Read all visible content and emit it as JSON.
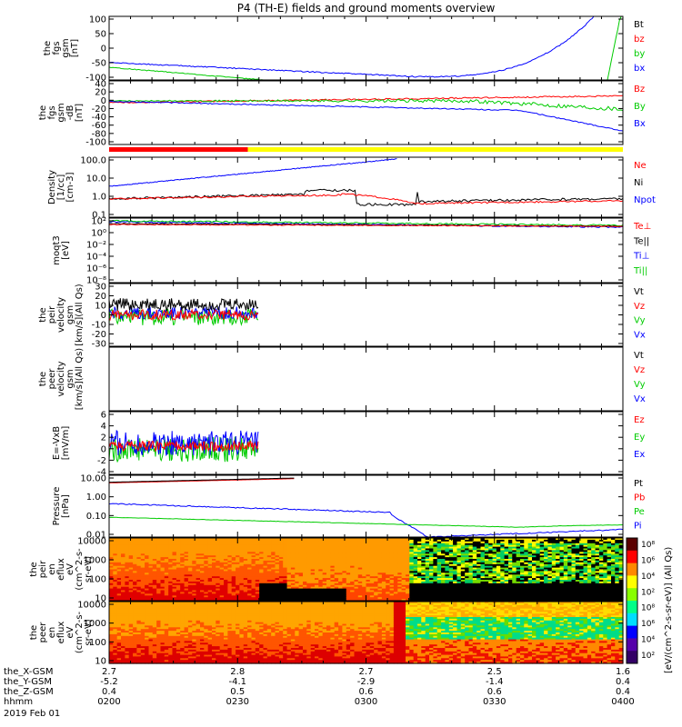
{
  "title": "P4 (TH-E) fields and ground moments overview",
  "colors": {
    "black": "#000000",
    "red": "#ff0000",
    "green": "#00cc00",
    "blue": "#0000ff",
    "yellow": "#ffff00"
  },
  "chart_data": [
    {
      "type": "line",
      "panel": "fgs",
      "ylabel_lines": [
        "the",
        "fgs",
        "gsm",
        "[nT]"
      ],
      "yticks": [
        "100",
        "50",
        "0",
        "-50",
        "-100"
      ],
      "ylim": [
        -100,
        100
      ],
      "legend": [
        "Bt",
        "bz",
        "by",
        "bx"
      ],
      "legend_colors": [
        "black",
        "red",
        "green",
        "blue"
      ],
      "series": [
        {
          "name": "bx",
          "color": "blue",
          "values": "(drawn)"
        },
        {
          "name": "by",
          "color": "green"
        }
      ]
    },
    {
      "type": "line",
      "panel": "fgs_dsl",
      "ylabel_lines": [
        "the",
        "fgs",
        "gsm",
        "-dB",
        "[nT]"
      ],
      "yticks": [
        "40",
        "20",
        "0",
        "-20",
        "-40",
        "-60",
        "-80",
        "-100"
      ],
      "ylim": [
        -100,
        40
      ],
      "legend": [
        "Bz",
        "By",
        "Bx"
      ],
      "legend_colors": [
        "red",
        "green",
        "blue"
      ]
    },
    {
      "type": "line",
      "panel": "density",
      "ylabel_lines": [
        "Density",
        "[1/cc]",
        "[cm-3]"
      ],
      "yticks": [
        "100.0",
        "10.0",
        "1.0",
        "0.1"
      ],
      "log": true,
      "legend": [
        "Ne",
        "Ni",
        "Npot"
      ],
      "legend_colors": [
        "red",
        "black",
        "blue"
      ]
    },
    {
      "type": "line",
      "panel": "temperature",
      "ylabel_lines": [
        "moqt3",
        "[eV]"
      ],
      "yticks": [
        "10²",
        "10⁰",
        "10⁻²",
        "10⁻⁴",
        "10⁻⁶",
        "10⁻⁸"
      ],
      "legend": [
        "Te⊥",
        "Te||",
        "Ti⊥",
        "Ti||"
      ],
      "legend_colors": [
        "red",
        "black",
        "blue",
        "green"
      ]
    },
    {
      "type": "line",
      "panel": "peir_velocity",
      "ylabel_lines": [
        "the",
        "peir",
        "velocity",
        "gsm",
        "[km/s](All Qs)"
      ],
      "yticks": [
        "30",
        "20",
        "10",
        "0",
        "-10",
        "-20",
        "-30"
      ],
      "ylim": [
        -30,
        30
      ],
      "legend": [
        "Vt",
        "Vz",
        "Vy",
        "Vx"
      ],
      "legend_colors": [
        "black",
        "red",
        "green",
        "blue"
      ]
    },
    {
      "type": "line",
      "panel": "peer_velocity",
      "ylabel_lines": [
        "the",
        "peer",
        "velocity",
        "gsm",
        "[km/s](All Qs)"
      ],
      "yticks": [],
      "legend": [
        "Vt",
        "Vz",
        "Vy",
        "Vx"
      ],
      "legend_colors": [
        "black",
        "red",
        "green",
        "blue"
      ]
    },
    {
      "type": "line",
      "panel": "efield",
      "ylabel_lines": [
        "E=-VxB",
        "[mV/m]"
      ],
      "yticks": [
        "6",
        "4",
        "2",
        "0",
        "-2",
        "-4"
      ],
      "ylim": [
        -4,
        6
      ],
      "legend": [
        "Ez",
        "Ey",
        "Ex"
      ],
      "legend_colors": [
        "red",
        "green",
        "blue"
      ]
    },
    {
      "type": "line",
      "panel": "pressure",
      "ylabel_lines": [
        "Pressure",
        "[nPa]"
      ],
      "yticks": [
        "10.00",
        "1.00",
        "0.10",
        "0.01"
      ],
      "log": true,
      "legend": [
        "Pt",
        "Pb",
        "Pe",
        "Pi"
      ],
      "legend_colors": [
        "black",
        "red",
        "green",
        "blue"
      ]
    },
    {
      "type": "heatmap",
      "panel": "peir_eflux",
      "ylabel_lines": [
        "the",
        "peir",
        "en",
        "eflux",
        "eV",
        "(cm^2-s-",
        "sr-eV)"
      ],
      "yticks": [
        "10000",
        "1000",
        "100",
        "10"
      ]
    },
    {
      "type": "heatmap",
      "panel": "peer_eflux",
      "ylabel_lines": [
        "the",
        "peer",
        "en",
        "eflux",
        "eV",
        "(cm^2-s-",
        "sr-eV)"
      ],
      "yticks": [
        "10000",
        "1000",
        "100",
        "10"
      ]
    }
  ],
  "colorbar": {
    "ticks": [
      "10⁸",
      "10⁶",
      "10⁴",
      "10²",
      "10⁸",
      "10⁶",
      "10⁴",
      "10²"
    ],
    "label": "[eV/(cm^2-s-sr-eV)] (All Qs)"
  },
  "xaxis": {
    "row_labels": [
      "the_X-GSM",
      "the_Y-GSM",
      "the_Z-GSM",
      "hhmm",
      "2019 Feb 01"
    ],
    "columns": [
      {
        "values": [
          "2.7",
          "-5.2",
          "0.4",
          "0200"
        ]
      },
      {
        "values": [
          "2.8",
          "-4.1",
          "0.5",
          "0230"
        ]
      },
      {
        "values": [
          "2.7",
          "-2.9",
          "0.6",
          "0300"
        ]
      },
      {
        "values": [
          "2.5",
          "-1.4",
          "0.6",
          "0330"
        ]
      },
      {
        "values": [
          "1.6",
          "0.4",
          "0.4",
          "0400"
        ]
      }
    ]
  }
}
